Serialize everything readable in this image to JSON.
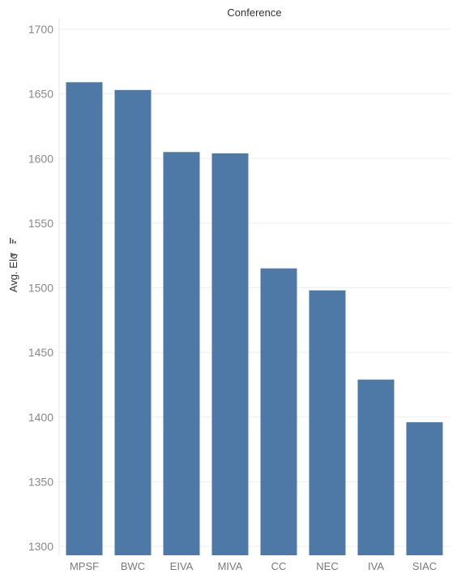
{
  "chart_data": {
    "type": "bar",
    "title": "Conference",
    "xlabel": "",
    "ylabel": "Avg. Elo",
    "categories": [
      "MPSF",
      "BWC",
      "EIVA",
      "MIVA",
      "CC",
      "NEC",
      "IVA",
      "SIAC"
    ],
    "values": [
      1659,
      1653,
      1605,
      1604,
      1515,
      1498,
      1429,
      1396
    ],
    "ylim": [
      1300,
      1700
    ],
    "yticks": [
      1300,
      1350,
      1400,
      1450,
      1500,
      1550,
      1600,
      1650,
      1700
    ],
    "grid": true,
    "legend": "none",
    "colors": {
      "bar": "#4e79a7",
      "grid": "#eeeeee",
      "tick": "#8a8a8a"
    },
    "icons": {
      "ylabel_icons": [
        "pin-icon",
        "sort-icon"
      ]
    }
  }
}
